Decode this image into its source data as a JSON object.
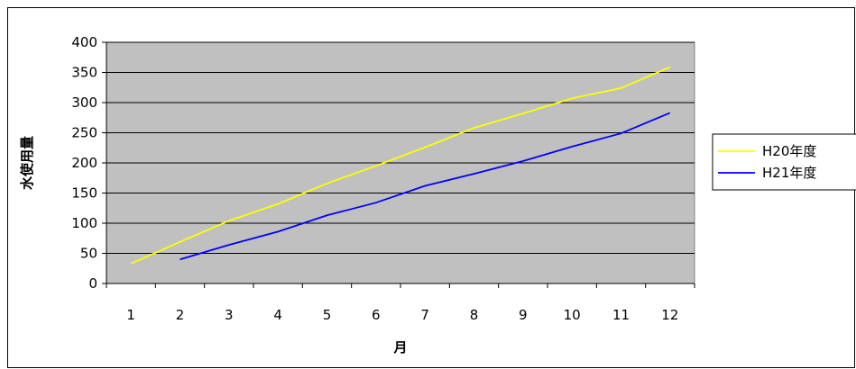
{
  "chart_data": {
    "type": "line",
    "title": "",
    "xlabel": "月",
    "ylabel": "水使用量",
    "categories": [
      "1",
      "2",
      "3",
      "4",
      "5",
      "6",
      "7",
      "8",
      "9",
      "10",
      "11",
      "12"
    ],
    "ylim": [
      0,
      400
    ],
    "yticks": [
      0,
      50,
      100,
      150,
      200,
      250,
      300,
      350,
      400
    ],
    "grid": true,
    "plot_background": "#c0c0c0",
    "legend_position": "right",
    "series": [
      {
        "name": "H20年度",
        "color": "#ffff00",
        "values": [
          33,
          69,
          104,
          132,
          166,
          195,
          226,
          258,
          282,
          307,
          324,
          359
        ]
      },
      {
        "name": "H21年度",
        "color": "#0000ff",
        "values": [
          null,
          40,
          64,
          86,
          113,
          134,
          162,
          182,
          203,
          227,
          249,
          283
        ]
      }
    ]
  }
}
